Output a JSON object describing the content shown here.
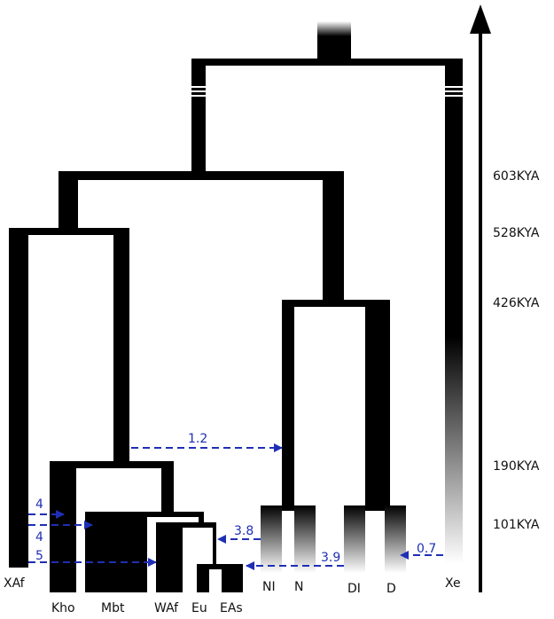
{
  "leaves": {
    "xaf": "XAf",
    "kho": "Kho",
    "mbt": "Mbt",
    "waf": "WAf",
    "eu": "Eu",
    "eas": "EAs",
    "nl": "NI",
    "n": "N",
    "dl": "DI",
    "d": "D",
    "xe": "Xe"
  },
  "time_axis": {
    "t603": "603KYA",
    "t528": "528KYA",
    "t426": "426KYA",
    "t190": "190KYA",
    "t101": "101KYA"
  },
  "gene_flow": {
    "f1": "4",
    "f2": "4",
    "f3": "5",
    "f4": "1.2",
    "f5": "3.8",
    "f6": "3.9",
    "f7": "0.7"
  },
  "colors": {
    "tree": "#000000",
    "arrow": "#1f2fb5",
    "background": "#ffffff"
  }
}
